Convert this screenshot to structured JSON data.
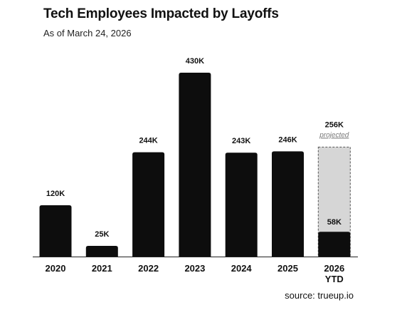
{
  "header": {
    "title": "Tech Employees Impacted by Layoffs",
    "subtitle": "As of March 24, 2026"
  },
  "footer": {
    "source": "source: trueup.io"
  },
  "colors": {
    "bar": "#0d0d0d",
    "projected_fill": "#d6d6d6",
    "projected_border": "#555555",
    "axis": "#222222"
  },
  "chart_data": {
    "type": "bar",
    "title": "Tech Employees Impacted by Layoffs",
    "subtitle": "As of March 24, 2026",
    "xlabel": "",
    "ylabel": "",
    "grid": false,
    "legend": "none",
    "ylim": [
      0,
      430
    ],
    "categories": [
      "2020",
      "2021",
      "2022",
      "2023",
      "2024",
      "2025",
      "2026\nYTD"
    ],
    "values": [
      120,
      25,
      244,
      430,
      243,
      246,
      58
    ],
    "value_labels": [
      "120K",
      "25K",
      "244K",
      "430K",
      "243K",
      "246K",
      "58K"
    ],
    "projected": {
      "category": "2026\nYTD",
      "value": 256,
      "label": "256K",
      "note": "projected"
    }
  }
}
